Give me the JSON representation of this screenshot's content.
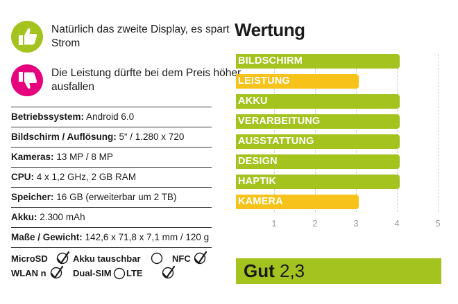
{
  "pros": {
    "text": "Natürlich das zweite Display, es spart Strom",
    "icon": "thumbs-up-icon",
    "color": "#a4c31f"
  },
  "cons": {
    "text": "Die Leistung dürfte bei dem Preis höher ausfallen",
    "icon": "thumbs-down-icon",
    "color": "#e6007e"
  },
  "specs": [
    {
      "label": "Betriebssystem:",
      "value": "Android 6.0"
    },
    {
      "label": "Bildschirm / Auflösung:",
      "value": "5“ / 1.280 x 720"
    },
    {
      "label": "Kameras:",
      "value": "13 MP / 8 MP"
    },
    {
      "label": "CPU:",
      "value": "4 x 1,2 GHz, 2 GB RAM"
    },
    {
      "label": "Speicher:",
      "value": "16 GB (erweiterbar um 2 TB)"
    },
    {
      "label": "Akku:",
      "value": "2.300 mAh"
    },
    {
      "label": "Maße / Gewicht:",
      "value": "142,6 x 71,8 x 7,1 mm / 120 g"
    }
  ],
  "features": [
    {
      "label": "MicroSD",
      "supported": true
    },
    {
      "label": "Akku tauschbar",
      "supported": false
    },
    {
      "label": "NFC",
      "supported": true
    },
    {
      "label": "WLAN n",
      "supported": true
    },
    {
      "label": "Dual-SIM",
      "supported": false
    },
    {
      "label": "LTE",
      "supported": true
    }
  ],
  "rating": {
    "heading": "Wertung",
    "verdict": "Gut",
    "score": "2,3",
    "colors": {
      "good": "#a4c31f",
      "medium": "#f7c31a"
    }
  },
  "chart_data": {
    "type": "bar",
    "orientation": "horizontal",
    "categories": [
      "BILDSCHIRM",
      "LEISTUNG",
      "AKKU",
      "VERARBEITUNG",
      "AUSSTATTUNG",
      "DESIGN",
      "HAPTIK",
      "KAMERA"
    ],
    "values": [
      4,
      3,
      4,
      4,
      4,
      4,
      4,
      3
    ],
    "colors": [
      "#a4c31f",
      "#f7c31a",
      "#a4c31f",
      "#a4c31f",
      "#a4c31f",
      "#a4c31f",
      "#a4c31f",
      "#f7c31a"
    ],
    "xticks": [
      "1",
      "2",
      "3",
      "4",
      "5"
    ],
    "xlim": [
      0,
      5
    ],
    "grid": true
  }
}
